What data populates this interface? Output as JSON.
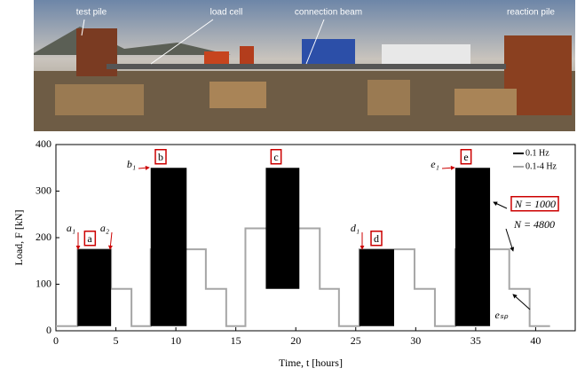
{
  "photo": {
    "labels": [
      "test pile",
      "load cell",
      "connection beam",
      "reaction pile"
    ]
  },
  "chart_data": {
    "type": "step",
    "x_label": "Time, t [hours]",
    "y_label": "Load, F [kN]",
    "xlim": [
      0,
      43.3
    ],
    "ylim": [
      0,
      400
    ],
    "xticks": [
      0,
      5,
      10,
      15,
      20,
      25,
      30,
      35,
      40
    ],
    "yticks": [
      0,
      100,
      200,
      300,
      400
    ],
    "series": [
      {
        "name": "0.1 Hz",
        "color": "#000000",
        "kind": "blocks",
        "x_start": [
          1.8,
          7.9,
          17.5,
          25.3,
          33.3
        ],
        "x_end": [
          4.6,
          10.9,
          20.3,
          28.2,
          36.2
        ],
        "low": [
          10,
          10,
          90,
          10,
          10
        ],
        "values": [
          175,
          350,
          350,
          175,
          350
        ]
      },
      {
        "name": "0.1-4 Hz",
        "color": "#a6a6a6",
        "kind": "line",
        "x": [
          0,
          1.8,
          1.8,
          4.6,
          4.6,
          6.3,
          6.3,
          7.9,
          7.9,
          12.5,
          12.5,
          14.2,
          14.2,
          15.8,
          15.8,
          22,
          22,
          23.6,
          23.6,
          25.3,
          25.3,
          29.9,
          29.9,
          31.6,
          31.6,
          33.3,
          33.3,
          37.8,
          37.8,
          39.5,
          39.5,
          41.2
        ],
        "values": [
          10,
          10,
          175,
          175,
          90,
          90,
          10,
          10,
          175,
          175,
          90,
          90,
          10,
          10,
          220,
          220,
          90,
          90,
          10,
          10,
          175,
          175,
          90,
          90,
          10,
          10,
          175,
          175,
          90,
          90,
          10,
          10
        ]
      }
    ],
    "annotations": [
      "a",
      "b",
      "c",
      "d",
      "e",
      "a₁",
      "a₂",
      "b₁",
      "d₁",
      "e₁",
      "N = 1000",
      "N = 4800",
      "eₛₚ"
    ],
    "legend": "upper right"
  }
}
